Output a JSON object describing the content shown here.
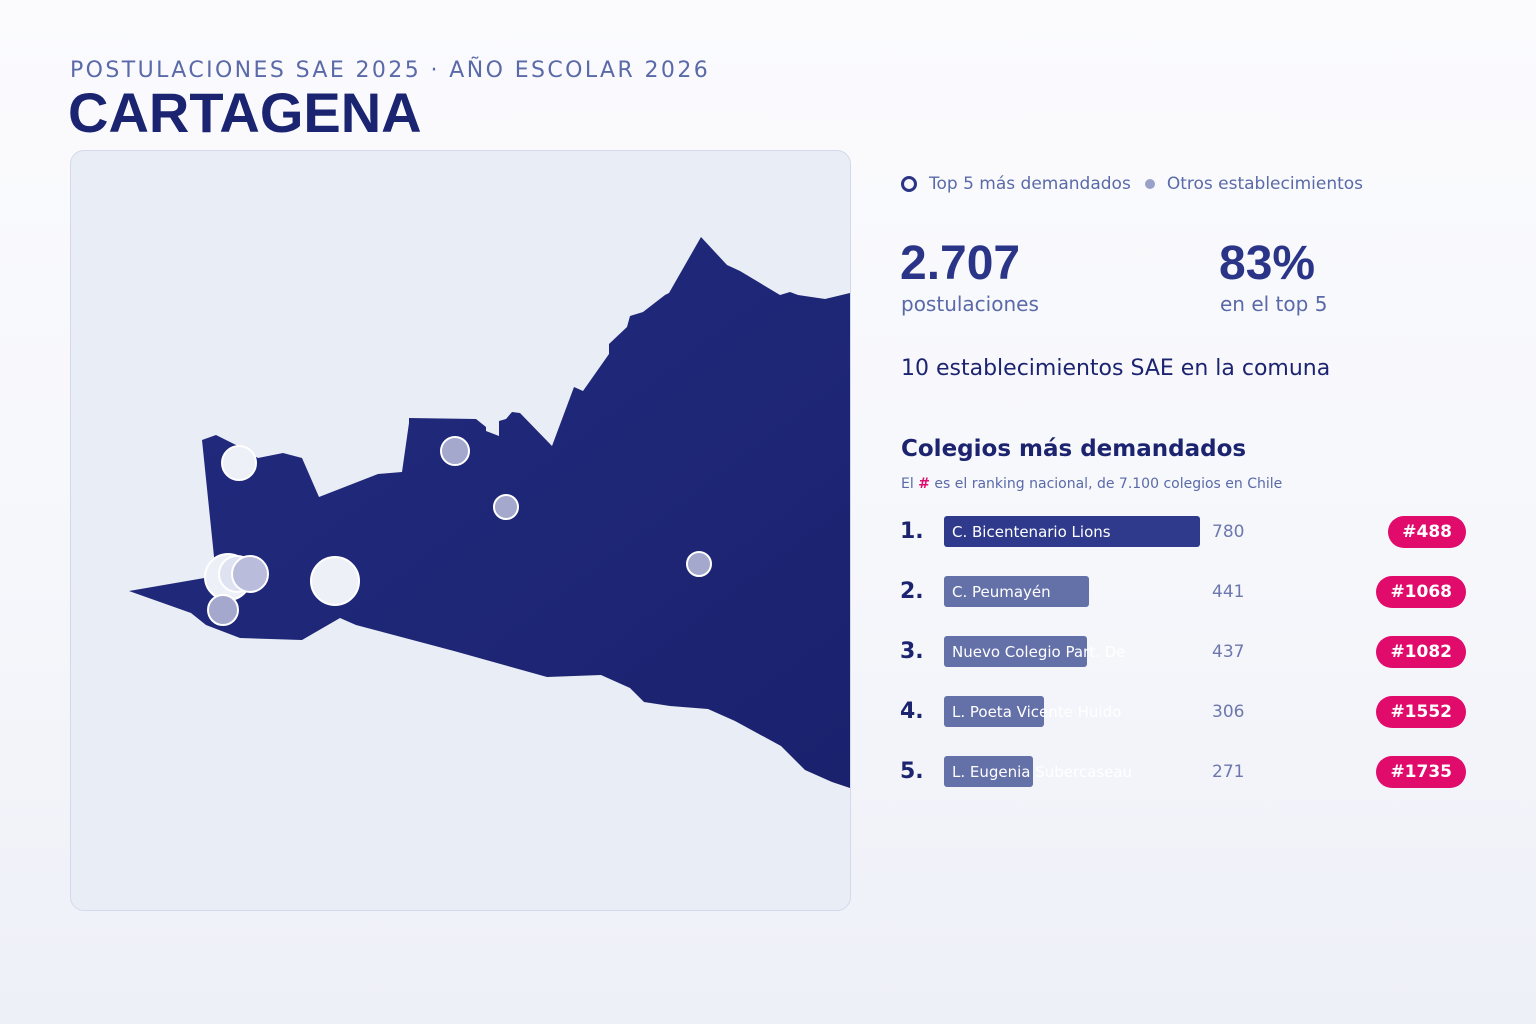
{
  "header": {
    "subtitle": "POSTULACIONES SAE 2025 · AÑO ESCOLAR 2026",
    "title": "CARTAGENA"
  },
  "legend": {
    "top5_label": "Top 5 más demandados",
    "others_label": "Otros establecimientos"
  },
  "stats": {
    "applications_value": "2.707",
    "applications_label": "postulaciones",
    "top5_share_value": "83%",
    "top5_share_label": "en el top 5"
  },
  "schools_count_text": "10 establecimientos SAE en la comuna",
  "ranking": {
    "title": "Colegios más demandados",
    "note_prefix": "El",
    "note_hash": "#",
    "note_suffix": "es el ranking nacional, de 7.100 colegios en Chile",
    "items": [
      {
        "position": "1.",
        "name": "C. Bicentenario Lions",
        "applications": 780,
        "badge": "#488"
      },
      {
        "position": "2.",
        "name": "C. Peumayén",
        "applications": 441,
        "badge": "#1068"
      },
      {
        "position": "3.",
        "name": "Nuevo Colegio Part. De",
        "applications": 437,
        "badge": "#1082"
      },
      {
        "position": "4.",
        "name": "L. Poeta Vicente Huido",
        "applications": 306,
        "badge": "#1552"
      },
      {
        "position": "5.",
        "name": "L. Eugenia Subercaseau",
        "applications": 271,
        "badge": "#1735"
      }
    ]
  },
  "colors": {
    "commune_fill": "#1f2a7c",
    "top1_bar": "#2f3a8c",
    "other_bars": "#6470a8",
    "badge": "#e00b6a",
    "marker_top5": "#eef0f8",
    "marker_other": "#a3a8cc"
  }
}
